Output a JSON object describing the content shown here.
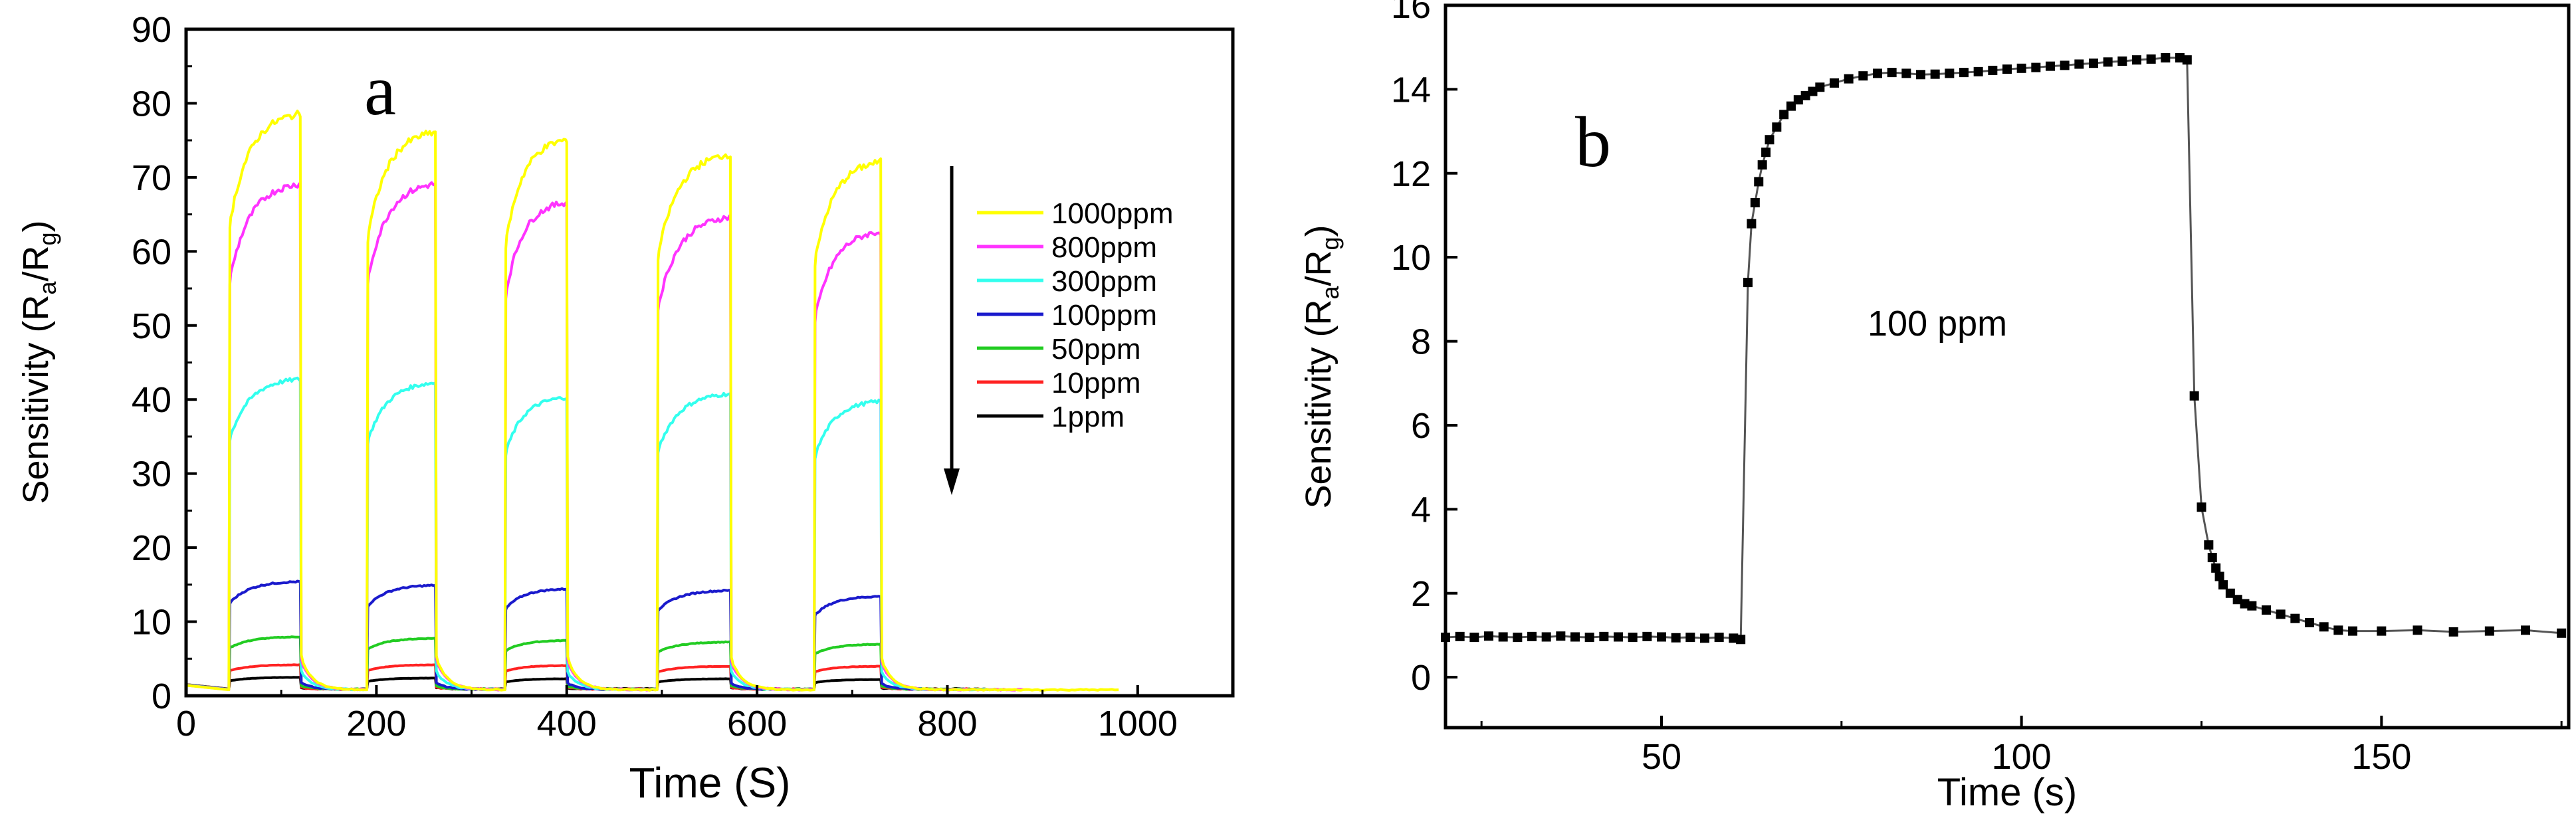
{
  "chart_data": [
    {
      "type": "line",
      "panel_label": "a",
      "xlabel": "Time (S)",
      "ylabel_parts": {
        "main": "Sensitivity (R",
        "sub1": "a",
        "mid": "/R",
        "sub2": "g",
        "end": ")"
      },
      "xlim": [
        0,
        1100
      ],
      "ylim": [
        0,
        90
      ],
      "xticks": [
        0,
        200,
        400,
        600,
        800,
        1000
      ],
      "yticks": [
        0,
        10,
        20,
        30,
        40,
        50,
        60,
        70,
        80,
        90
      ],
      "xtick_labels": [
        "0",
        "200",
        "400",
        "600",
        "800",
        "1000"
      ],
      "ytick_labels": [
        "0",
        "10",
        "20",
        "30",
        "40",
        "50",
        "60",
        "70",
        "80",
        "90"
      ],
      "pulses": [
        {
          "on": 45,
          "off": 120
        },
        {
          "on": 190,
          "off": 262
        },
        {
          "on": 335,
          "off": 400
        },
        {
          "on": 495,
          "off": 572
        },
        {
          "on": 660,
          "off": 730
        }
      ],
      "legend_position": "right",
      "legend_arrow": "downward, decreasing concentration",
      "series": [
        {
          "name": "1000ppm",
          "color": "#ffff00",
          "peaks": [
            79,
            76.5,
            75.5,
            73.5,
            72.5
          ],
          "tail_end": 980
        },
        {
          "name": "800ppm",
          "color": "#ff33ff",
          "peaks": [
            69.5,
            69.5,
            67,
            65,
            63
          ],
          "tail_end": 880
        },
        {
          "name": "300ppm",
          "color": "#33ffee",
          "peaks": [
            43,
            42.5,
            40.5,
            41,
            40
          ],
          "tail_end": 860
        },
        {
          "name": "100ppm",
          "color": "#1a1acc",
          "peaks": [
            15.5,
            15,
            14.5,
            14.3,
            13.5
          ],
          "tail_end": 850
        },
        {
          "name": "50ppm",
          "color": "#22cc22",
          "peaks": [
            8,
            7.8,
            7.5,
            7.3,
            7
          ],
          "tail_end": 840
        },
        {
          "name": "10ppm",
          "color": "#ff2222",
          "peaks": [
            4.2,
            4.2,
            4.1,
            4,
            4
          ],
          "tail_end": 840
        },
        {
          "name": "1ppm",
          "color": "#000000",
          "peaks": [
            2.5,
            2.4,
            2.3,
            2.3,
            2.2
          ],
          "tail_end": 840
        }
      ]
    },
    {
      "type": "scatter",
      "panel_label": "b",
      "annotation": "100 ppm",
      "xlabel": "Time (s)",
      "ylabel_parts": {
        "main": "Sensitivity (R",
        "sub1": "a",
        "mid": "/R",
        "sub2": "g",
        "end": ")"
      },
      "xlim": [
        20,
        176
      ],
      "ylim": [
        -1.2,
        16
      ],
      "xticks": [
        50,
        100,
        150
      ],
      "yticks": [
        0,
        2,
        4,
        6,
        8,
        10,
        12,
        14,
        16
      ],
      "xtick_labels": [
        "50",
        "100",
        "150"
      ],
      "ytick_labels": [
        "0",
        "2",
        "4",
        "6",
        "8",
        "10",
        "12",
        "14",
        "16"
      ],
      "series": [
        {
          "name": "100 ppm",
          "color": "#000000",
          "x": [
            20,
            22,
            24,
            26,
            28,
            30,
            32,
            34,
            36,
            38,
            40,
            42,
            44,
            46,
            48,
            50,
            52,
            54,
            56,
            58,
            60,
            61,
            62,
            62.5,
            63,
            63.5,
            64,
            64.5,
            65,
            66,
            67,
            68,
            69,
            70,
            71,
            72,
            74,
            76,
            78,
            80,
            82,
            84,
            86,
            88,
            90,
            92,
            94,
            96,
            98,
            100,
            102,
            104,
            106,
            108,
            110,
            112,
            114,
            116,
            118,
            120,
            122,
            123,
            124,
            125,
            126,
            126.5,
            127,
            127.5,
            128,
            129,
            130,
            131,
            132,
            134,
            136,
            138,
            140,
            142,
            144,
            146,
            150,
            155,
            160,
            165,
            170,
            175
          ],
          "y": [
            0.95,
            0.97,
            0.95,
            0.98,
            0.96,
            0.95,
            0.97,
            0.96,
            0.98,
            0.96,
            0.95,
            0.97,
            0.96,
            0.95,
            0.97,
            0.96,
            0.94,
            0.95,
            0.93,
            0.95,
            0.93,
            0.9,
            9.4,
            10.8,
            11.3,
            11.8,
            12.2,
            12.5,
            12.8,
            13.1,
            13.4,
            13.6,
            13.75,
            13.85,
            13.95,
            14.05,
            14.15,
            14.25,
            14.32,
            14.38,
            14.4,
            14.38,
            14.35,
            14.36,
            14.38,
            14.4,
            14.42,
            14.45,
            14.48,
            14.5,
            14.52,
            14.55,
            14.57,
            14.6,
            14.62,
            14.65,
            14.67,
            14.7,
            14.72,
            14.75,
            14.75,
            14.7,
            6.7,
            4.05,
            3.15,
            2.85,
            2.6,
            2.4,
            2.2,
            2.0,
            1.85,
            1.75,
            1.7,
            1.6,
            1.5,
            1.4,
            1.3,
            1.2,
            1.12,
            1.1,
            1.1,
            1.12,
            1.08,
            1.1,
            1.12,
            1.05
          ]
        }
      ]
    }
  ]
}
